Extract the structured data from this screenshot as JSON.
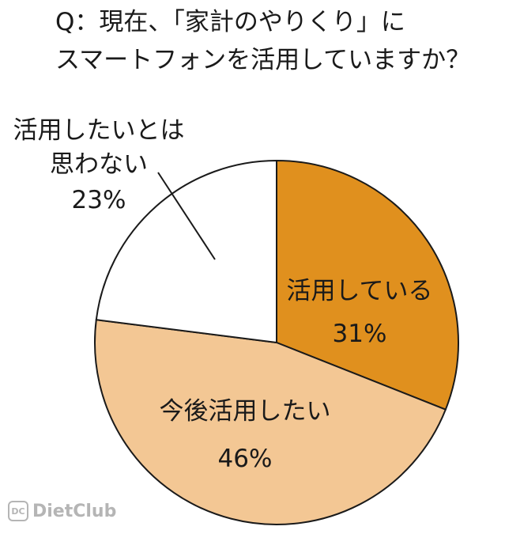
{
  "title_lines": [
    "Q：現在、「家計のやりくり」に",
    "スマートフォンを活用していますか？"
  ],
  "chart_data": {
    "type": "pie",
    "title": "Q：現在、「家計のやりくり」にスマートフォンを活用していますか？",
    "categories": [
      "活用している",
      "今後活用したい",
      "活用したいとは思わない"
    ],
    "values": [
      31,
      46,
      23
    ],
    "unit": "%",
    "labels": [
      {
        "lines": [
          "活用している"
        ],
        "value_text": "31%"
      },
      {
        "lines": [
          "今後活用したい"
        ],
        "value_text": "46%"
      },
      {
        "lines": [
          "活用したいとは",
          "思わない"
        ],
        "value_text": "23%"
      }
    ],
    "colors": [
      "#e0901e",
      "#f3c794",
      "#ffffff"
    ]
  },
  "watermark": {
    "logo_text": "DC",
    "text": "DietClub"
  }
}
